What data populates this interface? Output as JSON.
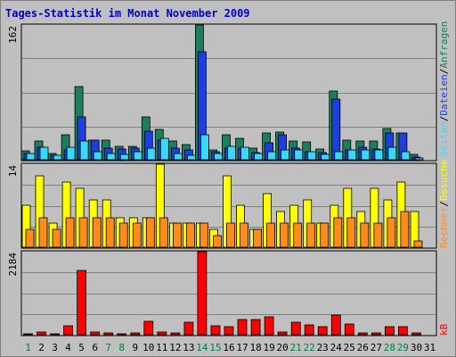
{
  "title": "Tages-Statistik im Monat November 2009",
  "colors": {
    "anfragen": "#1a7f5a",
    "dateien": "#1e3fe0",
    "seiten": "#38d8ff",
    "besuche": "#ffff00",
    "rechner": "#ff8c1a",
    "kb": "#ff0000",
    "weekend_label": "#008040",
    "weekday_label": "#000000"
  },
  "panel_labels": {
    "top_max": "162",
    "mid_max": "14",
    "bot_max": "2184",
    "anfragen": "Anfragen",
    "dateien": "Dateien",
    "seiten": "Seiten",
    "besuche": "Besuche",
    "rechner": "Rechner",
    "kb": "kB",
    "sep": "/"
  },
  "chart_data": {
    "type": "bar",
    "title": "Tages-Statistik im Monat November 2009",
    "categories": [
      "1",
      "2",
      "3",
      "4",
      "5",
      "6",
      "7",
      "8",
      "9",
      "10",
      "11",
      "12",
      "13",
      "14",
      "15",
      "16",
      "17",
      "18",
      "19",
      "20",
      "21",
      "22",
      "23",
      "24",
      "25",
      "26",
      "27",
      "28",
      "29",
      "30",
      "31"
    ],
    "weekend_days": [
      1,
      7,
      8,
      14,
      15,
      21,
      22,
      28,
      29
    ],
    "panels": [
      {
        "ylim": [
          0,
          162
        ],
        "series": [
          {
            "name": "Anfragen",
            "values": [
              11,
              22,
              8,
              30,
              88,
              24,
              24,
              16,
              16,
              52,
              36,
              23,
              18,
              162,
              12,
              30,
              26,
              14,
              32,
              33,
              22,
              21,
              13,
              83,
              24,
              22,
              22,
              38,
              32,
              6,
              0
            ]
          },
          {
            "name": "Dateien",
            "values": [
              8,
              15,
              5,
              12,
              52,
              24,
              14,
              13,
              14,
              34,
              24,
              14,
              12,
              130,
              10,
              14,
              14,
              9,
              20,
              30,
              14,
              10,
              9,
              73,
              12,
              15,
              13,
              32,
              32,
              3,
              0
            ]
          },
          {
            "name": "Seiten",
            "values": [
              8,
              15,
              5,
              15,
              22,
              10,
              8,
              6,
              10,
              14,
              26,
              8,
              5,
              30,
              7,
              16,
              15,
              8,
              10,
              12,
              12,
              10,
              6,
              10,
              12,
              12,
              12,
              15,
              10,
              2,
              0
            ]
          }
        ]
      },
      {
        "ylim": [
          0,
          14
        ],
        "series": [
          {
            "name": "Besuche",
            "values": [
              7,
              12,
              4,
              11,
              10,
              8,
              8,
              5,
              5,
              5,
              14,
              4,
              4,
              4,
              3,
              12,
              7,
              3,
              9,
              6,
              7,
              8,
              4,
              7,
              10,
              6,
              10,
              8,
              11,
              6,
              0
            ]
          },
          {
            "name": "Rechner",
            "values": [
              3,
              5,
              3,
              5,
              5,
              5,
              5,
              4,
              4,
              5,
              5,
              4,
              4,
              4,
              2,
              4,
              4,
              3,
              4,
              4,
              4,
              4,
              4,
              5,
              5,
              4,
              4,
              5,
              6,
              1,
              0
            ]
          }
        ]
      },
      {
        "ylim": [
          0,
          2184
        ],
        "series": [
          {
            "name": "kB",
            "values": [
              30,
              60,
              30,
              230,
              1700,
              80,
              40,
              30,
              40,
              360,
              70,
              40,
              320,
              2184,
              240,
              200,
              390,
              400,
              470,
              70,
              330,
              270,
              200,
              520,
              280,
              40,
              40,
              200,
              200,
              40,
              0
            ]
          }
        ]
      }
    ]
  }
}
